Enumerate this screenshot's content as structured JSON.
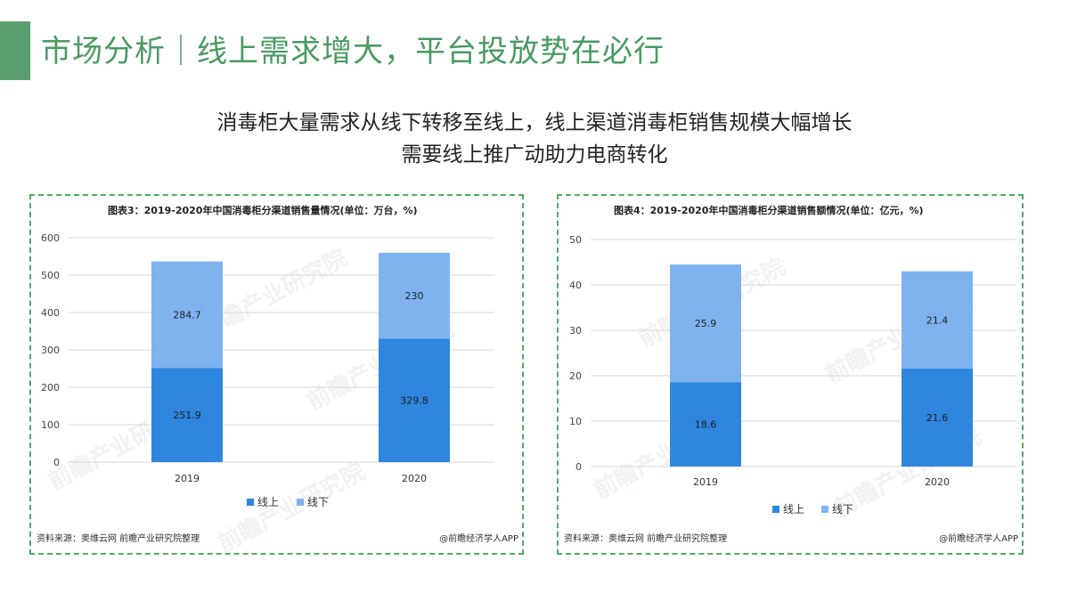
{
  "header": {
    "title": "市场分析｜线上需求增大，平台投放势在必行",
    "subtitle_line1": "消毒柜大量需求从线下转移至线上，线上渠道消毒柜销售规模大幅增长",
    "subtitle_line2": "需要线上推广动助力电商转化"
  },
  "colors": {
    "accent": "#5a9e6f",
    "online": "#2e86de",
    "offline": "#7fb3f0",
    "border": "#4caf60"
  },
  "watermark": "前瞻产业研究院",
  "chart_data": [
    {
      "type": "bar",
      "stacked": true,
      "title": "图表3：2019-2020年中国消毒柜分渠道销售量情况(单位：万台，%)",
      "categories": [
        "2019",
        "2020"
      ],
      "series": [
        {
          "name": "线上",
          "values": [
            251.9,
            329.8
          ],
          "labels": [
            "251.9",
            "329.8"
          ]
        },
        {
          "name": "线下",
          "values": [
            284.7,
            230
          ],
          "labels": [
            "284.7",
            "230"
          ]
        }
      ],
      "ylim": [
        0,
        600
      ],
      "yticks": [
        "0",
        "100",
        "200",
        "300",
        "400",
        "500",
        "600"
      ],
      "grid": true,
      "legend": "bottom",
      "source": "资料来源：奥维云网 前瞻产业研究院整理",
      "brand": "@前瞻经济学人APP"
    },
    {
      "type": "bar",
      "stacked": true,
      "title": "图表4：2019-2020年中国消毒柜分渠道销售额情况(单位：亿元，%)",
      "categories": [
        "2019",
        "2020"
      ],
      "series": [
        {
          "name": "线上",
          "values": [
            18.6,
            21.6
          ],
          "labels": [
            "18.6",
            "21.6"
          ]
        },
        {
          "name": "线下",
          "values": [
            25.9,
            21.4
          ],
          "labels": [
            "25.9",
            "21.4"
          ]
        }
      ],
      "ylim": [
        0,
        50
      ],
      "yticks": [
        "0",
        "10",
        "20",
        "30",
        "40",
        "50"
      ],
      "grid": true,
      "legend": "bottom",
      "source": "资料来源：奥维云网 前瞻产业研究院整理",
      "brand": "@前瞻经济学人APP"
    }
  ]
}
